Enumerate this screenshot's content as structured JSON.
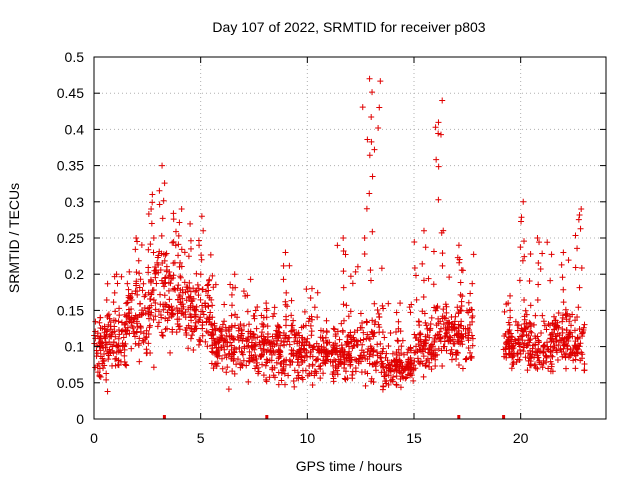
{
  "chart_data": {
    "type": "scatter",
    "title": "Day 107 of 2022, SRMTID for receiver p803",
    "xlabel": "GPS time / hours",
    "ylabel": "SRMTID / TECUs",
    "xlim": [
      0,
      24
    ],
    "ylim": [
      0,
      0.5
    ],
    "x_ticks": [
      0,
      5,
      10,
      15,
      20
    ],
    "x_tick_labels": [
      "0",
      "5",
      "10",
      "15",
      "20"
    ],
    "y_ticks": [
      0,
      0.05,
      0.1,
      0.15,
      0.2,
      0.25,
      0.3,
      0.35,
      0.4,
      0.45,
      0.5
    ],
    "y_tick_labels": [
      "0",
      "0.05",
      "0.1",
      "0.15",
      "0.2",
      "0.25",
      "0.3",
      "0.35",
      "0.4",
      "0.45",
      "0.5"
    ],
    "grid": true,
    "marker": "+",
    "color": "#e00000",
    "series": [
      {
        "name": "SRMTID",
        "envelope": [
          {
            "range": [
              0.0,
              0.5
            ],
            "base": 0.09,
            "spread": 0.04,
            "peak": 0.14
          },
          {
            "range": [
              0.5,
              1.5
            ],
            "base": 0.11,
            "spread": 0.05,
            "peak": 0.2
          },
          {
            "range": [
              1.5,
              2.5
            ],
            "base": 0.14,
            "spread": 0.06,
            "peak": 0.25
          },
          {
            "range": [
              2.5,
              3.0
            ],
            "base": 0.17,
            "spread": 0.07,
            "peak": 0.31
          },
          {
            "range": [
              3.0,
              3.5
            ],
            "base": 0.18,
            "spread": 0.07,
            "peak": 0.35
          },
          {
            "range": [
              3.5,
              4.5
            ],
            "base": 0.16,
            "spread": 0.06,
            "peak": 0.29
          },
          {
            "range": [
              4.5,
              5.5
            ],
            "base": 0.14,
            "spread": 0.05,
            "peak": 0.28
          },
          {
            "range": [
              5.5,
              7.5
            ],
            "base": 0.1,
            "spread": 0.04,
            "peak": 0.2
          },
          {
            "range": [
              7.5,
              8.5
            ],
            "base": 0.09,
            "spread": 0.04,
            "peak": 0.16
          },
          {
            "range": [
              8.5,
              9.5
            ],
            "base": 0.1,
            "spread": 0.05,
            "peak": 0.23
          },
          {
            "range": [
              9.5,
              11.0
            ],
            "base": 0.09,
            "spread": 0.04,
            "peak": 0.18
          },
          {
            "range": [
              11.0,
              12.5
            ],
            "base": 0.09,
            "spread": 0.04,
            "peak": 0.25
          },
          {
            "range": [
              12.5,
              13.5
            ],
            "base": 0.1,
            "spread": 0.05,
            "peak": 0.47
          },
          {
            "range": [
              13.5,
              15.0
            ],
            "base": 0.07,
            "spread": 0.03,
            "peak": 0.16
          },
          {
            "range": [
              15.0,
              16.0
            ],
            "base": 0.1,
            "spread": 0.04,
            "peak": 0.26
          },
          {
            "range": [
              16.0,
              16.5
            ],
            "base": 0.12,
            "spread": 0.05,
            "peak": 0.44
          },
          {
            "range": [
              16.5,
              17.8
            ],
            "base": 0.12,
            "spread": 0.05,
            "peak": 0.24
          },
          {
            "range": [
              19.2,
              19.8
            ],
            "base": 0.1,
            "spread": 0.03,
            "peak": 0.17
          },
          {
            "range": [
              19.8,
              20.3
            ],
            "base": 0.11,
            "spread": 0.04,
            "peak": 0.3
          },
          {
            "range": [
              20.3,
              21.5
            ],
            "base": 0.1,
            "spread": 0.04,
            "peak": 0.25
          },
          {
            "range": [
              21.5,
              22.5
            ],
            "base": 0.11,
            "spread": 0.04,
            "peak": 0.23
          },
          {
            "range": [
              22.5,
              23.0
            ],
            "base": 0.1,
            "spread": 0.04,
            "peak": 0.29
          }
        ],
        "points_per_hour": 90
      }
    ],
    "zero_markers_x": [
      3.3,
      8.1,
      17.1,
      19.2
    ]
  }
}
